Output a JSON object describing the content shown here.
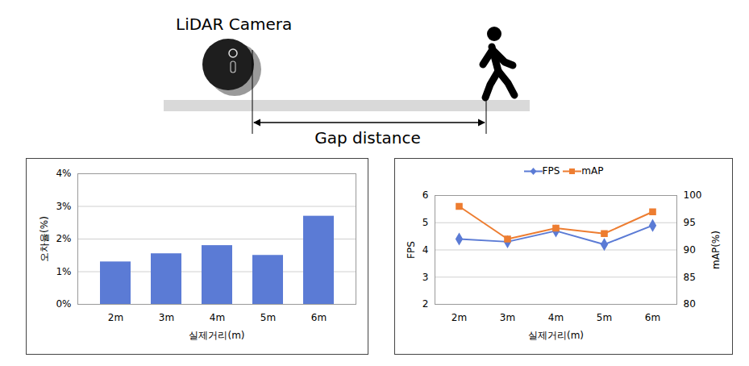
{
  "diagram": {
    "camera_label": "LiDAR Camera",
    "distance_label": "Gap distance"
  },
  "chart_data": [
    {
      "type": "bar",
      "categories": [
        "2m",
        "3m",
        "4m",
        "5m",
        "6m"
      ],
      "values": [
        1.3,
        1.55,
        1.8,
        1.5,
        2.7
      ],
      "color": "#5b7bd5",
      "ylim": [
        0,
        4
      ],
      "yticks": [
        {
          "value": 0,
          "label": "0%"
        },
        {
          "value": 1,
          "label": "1%"
        },
        {
          "value": 2,
          "label": "2%"
        },
        {
          "value": 3,
          "label": "3%"
        },
        {
          "value": 4,
          "label": "4%"
        }
      ],
      "y_label": "오차율(%)",
      "x_label": "실제거리(m)",
      "grid": true
    },
    {
      "type": "line",
      "categories": [
        "2m",
        "3m",
        "4m",
        "5m",
        "6m"
      ],
      "series": [
        {
          "name": "FPS",
          "color": "#5b7bd5",
          "marker": "diamond",
          "values": [
            4.4,
            4.3,
            4.7,
            4.2,
            4.9
          ]
        },
        {
          "name": "mAP",
          "color": "#ed7d31",
          "marker": "square",
          "axis": "y2",
          "values": [
            98,
            92,
            94,
            93,
            97
          ]
        }
      ],
      "ylim": [
        2,
        6
      ],
      "yticks": [
        2,
        3,
        4,
        5,
        6
      ],
      "y2lim": [
        80,
        100
      ],
      "y2ticks": [
        80,
        85,
        90,
        95,
        100
      ],
      "y_label": "FPS",
      "y2_label": "mAP(%)",
      "x_label": "실제거리(m)",
      "legend": "top",
      "grid": true
    }
  ]
}
